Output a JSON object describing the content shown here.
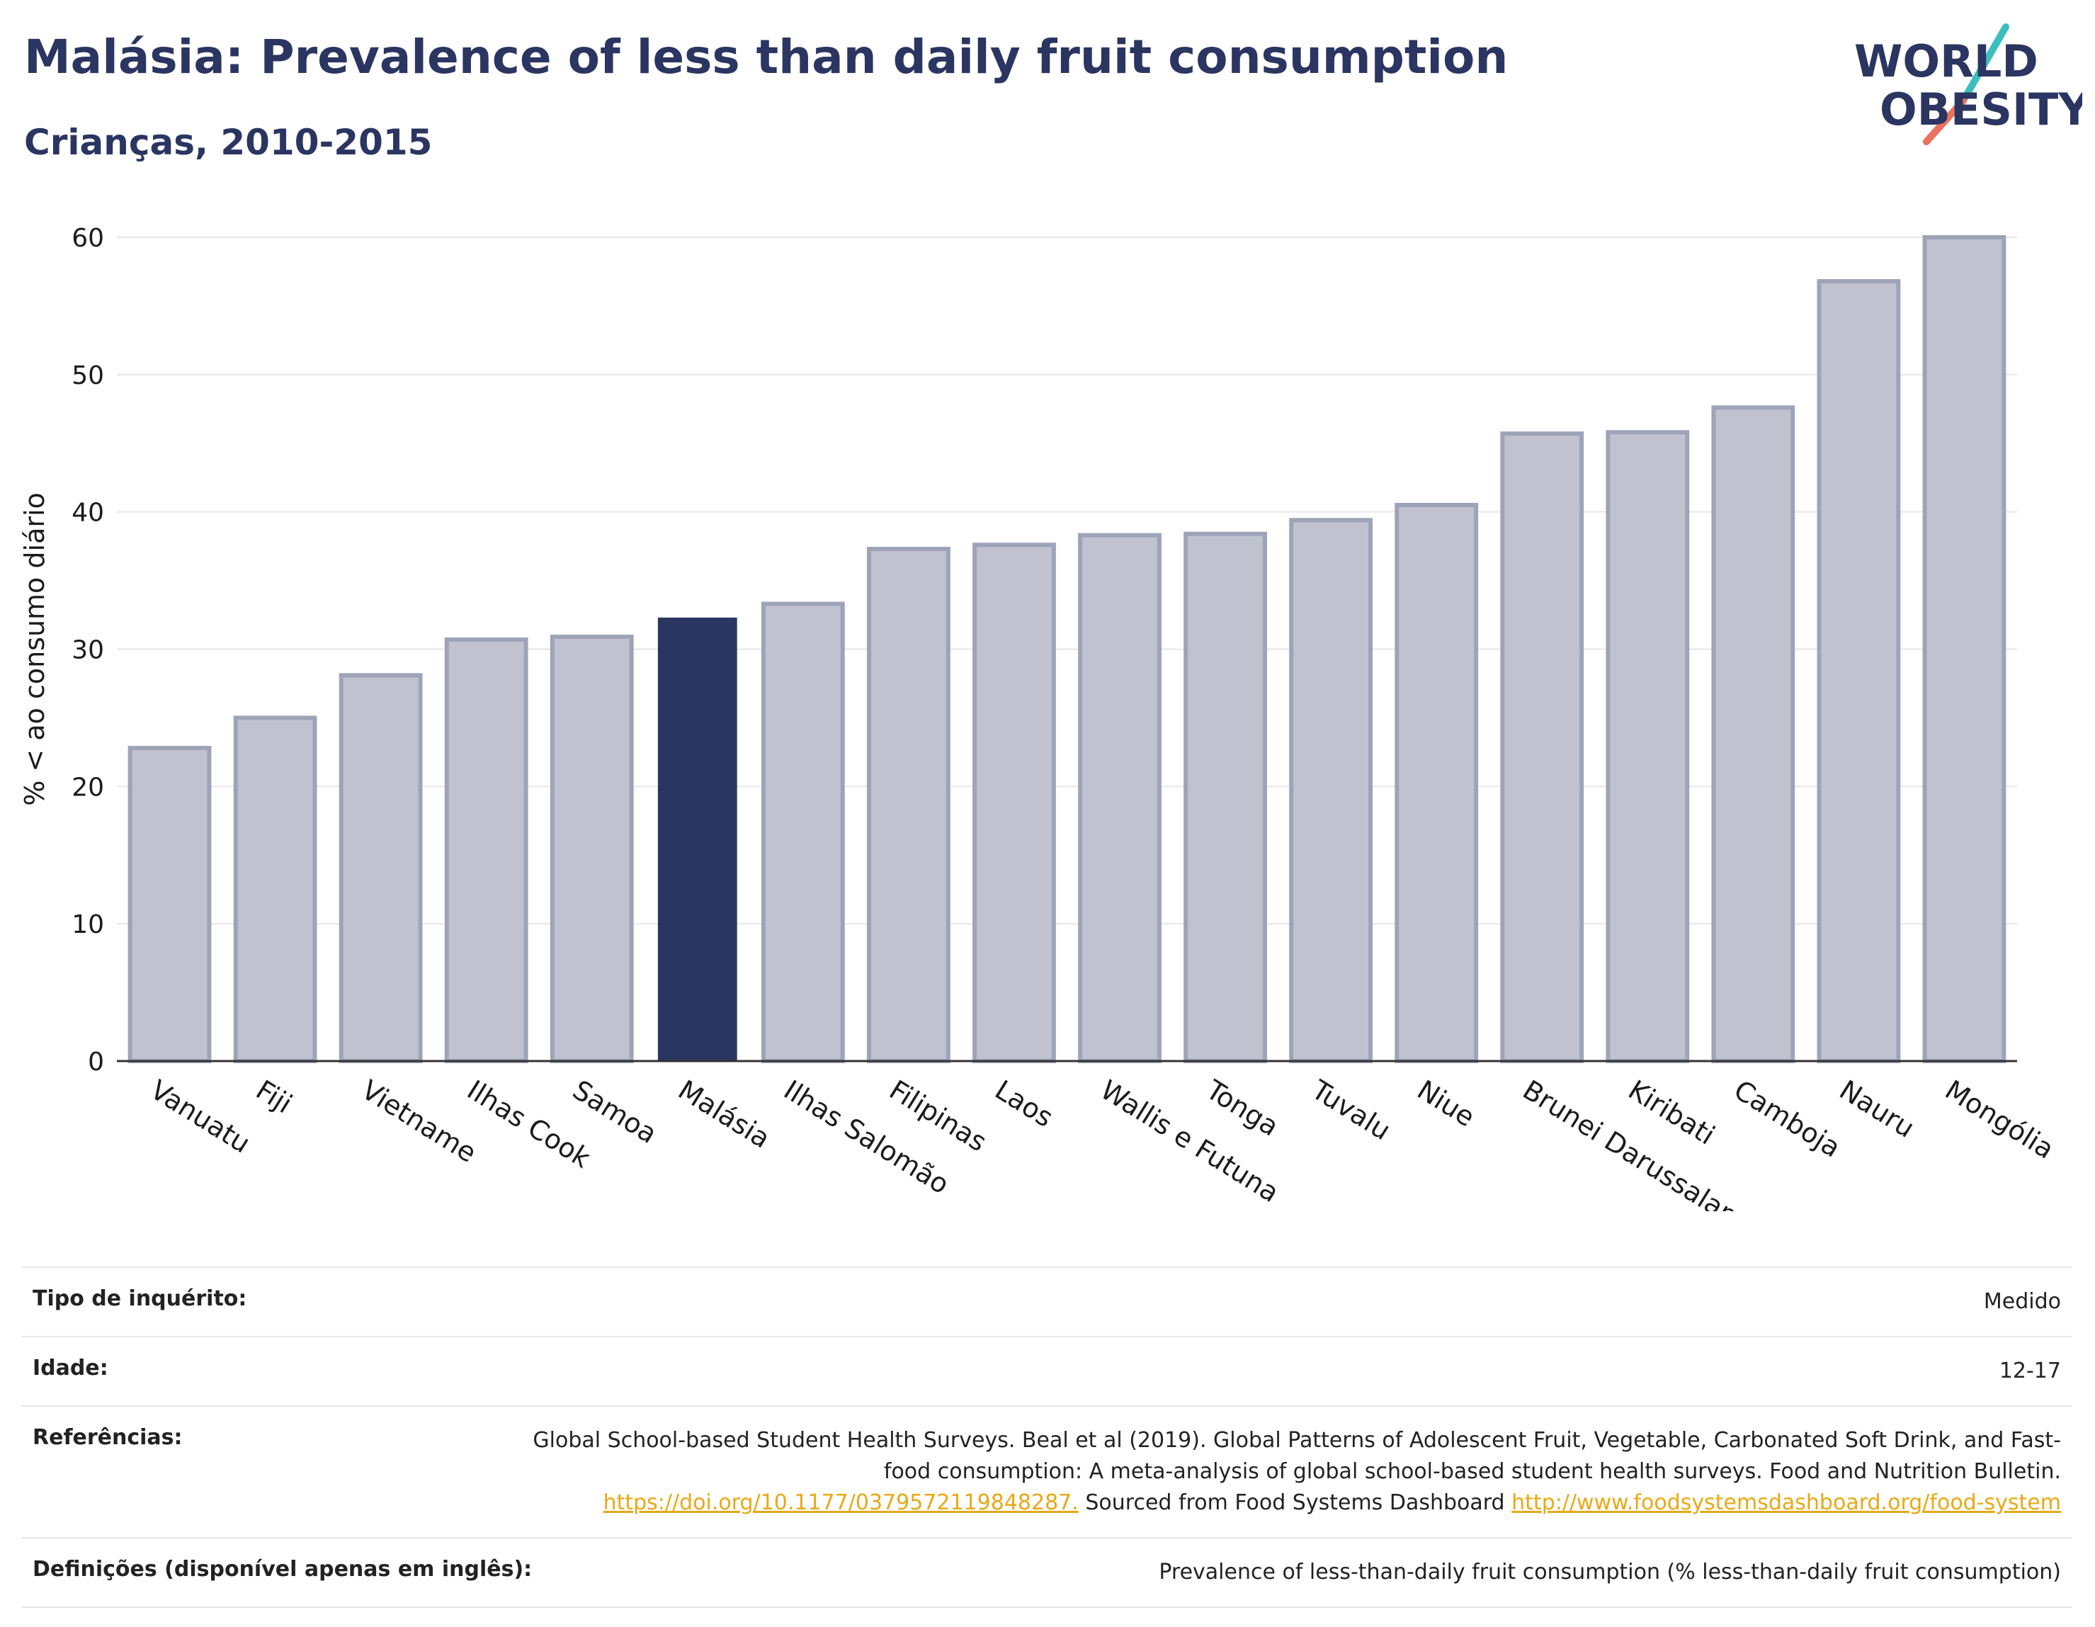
{
  "header": {
    "title": "Malásia: Prevalence of less than daily fruit consumption",
    "subtitle": "Crianças, 2010-2015"
  },
  "logo": {
    "line1": "WORLD",
    "line2": "OBESITY",
    "icon": "world-obesity-logo"
  },
  "colors": {
    "highlight": "#2b3561",
    "bar": "#c0c3cf",
    "bar_border": "#9ea3b8",
    "link": "#e8a915"
  },
  "chart_data": {
    "type": "bar",
    "categories": [
      "Vanuatu",
      "Fiji",
      "Vietname",
      "Ilhas Cook",
      "Samoa",
      "Malásia",
      "Ilhas Salomão",
      "Filipinas",
      "Laos",
      "Wallis e Futuna",
      "Tonga",
      "Tuvalu",
      "Niue",
      "Brunei Darussalam",
      "Kiribati",
      "Camboja",
      "Nauru",
      "Mongólia"
    ],
    "values": [
      22.8,
      25.0,
      28.1,
      30.7,
      30.9,
      32.3,
      33.3,
      37.3,
      37.6,
      38.3,
      38.4,
      39.4,
      40.5,
      45.7,
      45.8,
      47.6,
      56.8,
      60.0
    ],
    "highlight": "Malásia",
    "ylabel": "% < ao consumo diário",
    "ylim": [
      0,
      60
    ],
    "yticks": [
      0,
      10,
      20,
      30,
      40,
      50,
      60
    ],
    "grid": true
  },
  "info": {
    "survey_type": {
      "label": "Tipo de inquérito:",
      "value": "Medido"
    },
    "age": {
      "label": "Idade:",
      "value": "12-17"
    },
    "references": {
      "label": "Referências:",
      "text1": "Global School-based Student Health Surveys. Beal et al (2019). Global Patterns of Adolescent Fruit, Vegetable, Carbonated Soft Drink, and Fast-food consumption: A meta-analysis of global school-based student health surveys. Food and Nutrition Bulletin.",
      "link1": "https://doi.org/10.1177/0379572119848287.",
      "text2": "Sourced from Food Systems Dashboard",
      "link2": "http://www.foodsystemsdashboard.org/food-system"
    },
    "definitions": {
      "label": "Definições (disponível apenas em inglês):",
      "value": "Prevalence of less-than-daily fruit consumption (% less-than-daily fruit consumption)"
    }
  }
}
